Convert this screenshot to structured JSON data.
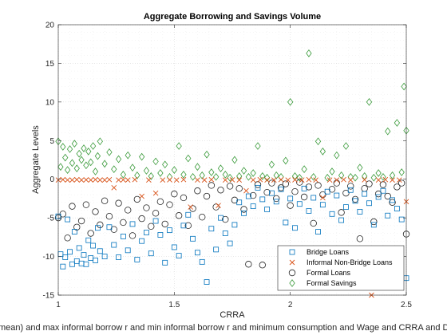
{
  "chart_data": {
    "type": "scatter",
    "title": "Aggregate Borrowing and Savings Volume",
    "xlabel": "CRRA",
    "ylabel": "Aggregate Levels",
    "caption": "mean) and max informal borrow r and min informal borrow r and minimum consumption and Wage and CRRA and D",
    "xlim": [
      1,
      2.5
    ],
    "ylim": [
      -15,
      20
    ],
    "xticks": [
      1,
      1.5,
      2,
      2.5
    ],
    "xtick_labels": [
      "1",
      "1.5",
      "2",
      "2.5"
    ],
    "yticks": [
      -15,
      -10,
      -5,
      0,
      5,
      10,
      15,
      20
    ],
    "ytick_labels": [
      "-15",
      "-10",
      "-5",
      "0",
      "5",
      "10",
      "15",
      "20"
    ],
    "grid": true,
    "grid_style": "dotted",
    "legend": {
      "placement": "bottom-right"
    },
    "series": [
      {
        "name": "Bridge Loans",
        "marker": "square",
        "color": "#0072BD",
        "points": [
          [
            1.0,
            -4.8
          ],
          [
            1.01,
            -9.7
          ],
          [
            1.02,
            -11.3
          ],
          [
            1.03,
            -10.1
          ],
          [
            1.04,
            -5.2
          ],
          [
            1.05,
            -9.4
          ],
          [
            1.06,
            -11.0
          ],
          [
            1.07,
            -6.8
          ],
          [
            1.08,
            -10.6
          ],
          [
            1.09,
            -8.9
          ],
          [
            1.1,
            -10.9
          ],
          [
            1.11,
            -9.8
          ],
          [
            1.12,
            -11.0
          ],
          [
            1.13,
            -7.9
          ],
          [
            1.14,
            -10.2
          ],
          [
            1.15,
            -8.6
          ],
          [
            1.16,
            -10.5
          ],
          [
            1.17,
            -6.3
          ],
          [
            1.18,
            -9.3
          ],
          [
            1.2,
            -10.0
          ],
          [
            1.22,
            -6.2
          ],
          [
            1.24,
            -8.5
          ],
          [
            1.26,
            -10.1
          ],
          [
            1.28,
            -7.4
          ],
          [
            1.3,
            -9.2
          ],
          [
            1.32,
            -5.8
          ],
          [
            1.34,
            -10.4
          ],
          [
            1.36,
            -8.0
          ],
          [
            1.38,
            -6.9
          ],
          [
            1.4,
            -9.6
          ],
          [
            1.42,
            -5.4
          ],
          [
            1.44,
            -7.2
          ],
          [
            1.46,
            -10.8
          ],
          [
            1.48,
            -6.6
          ],
          [
            1.5,
            -8.8
          ],
          [
            1.52,
            -9.9
          ],
          [
            1.54,
            -6.0
          ],
          [
            1.56,
            -4.6
          ],
          [
            1.58,
            -7.7
          ],
          [
            1.6,
            -9.5
          ],
          [
            1.62,
            -10.7
          ],
          [
            1.64,
            -13.3
          ],
          [
            1.66,
            -6.4
          ],
          [
            1.68,
            -9.1
          ],
          [
            1.7,
            -5.0
          ],
          [
            1.72,
            -7.0
          ],
          [
            1.74,
            -8.3
          ],
          [
            1.76,
            -5.9
          ],
          [
            1.78,
            -3.0
          ],
          [
            1.8,
            -4.4
          ],
          [
            1.82,
            -2.2
          ],
          [
            1.84,
            -3.5
          ],
          [
            1.86,
            -1.1
          ],
          [
            1.88,
            -2.6
          ],
          [
            1.9,
            -3.9
          ],
          [
            1.92,
            -1.8
          ],
          [
            1.94,
            -2.9
          ],
          [
            1.96,
            -1.3
          ],
          [
            1.98,
            -5.6
          ],
          [
            2.0,
            -2.5
          ],
          [
            2.02,
            -6.3
          ],
          [
            2.04,
            -3.2
          ],
          [
            2.06,
            -1.2
          ],
          [
            2.08,
            -4.1
          ],
          [
            2.1,
            -2.4
          ],
          [
            2.12,
            -6.8
          ],
          [
            2.14,
            -3.3
          ],
          [
            2.16,
            -1.6
          ],
          [
            2.18,
            -4.5
          ],
          [
            2.2,
            -2.1
          ],
          [
            2.22,
            -5.3
          ],
          [
            2.24,
            -3.6
          ],
          [
            2.26,
            -1.4
          ],
          [
            2.28,
            -2.8
          ],
          [
            2.3,
            -4.2
          ],
          [
            2.32,
            -1.9
          ],
          [
            2.34,
            -3.1
          ],
          [
            2.36,
            -5.9
          ],
          [
            2.38,
            -2.3
          ],
          [
            2.4,
            -1.5
          ],
          [
            2.42,
            -4.7
          ],
          [
            2.44,
            -2.7
          ],
          [
            2.46,
            -3.8
          ],
          [
            2.48,
            -5.2
          ],
          [
            2.5,
            -12.8
          ]
        ]
      },
      {
        "name": "Informal Non-Bridge Loans",
        "marker": "x",
        "color": "#D95319",
        "points": [
          [
            1.0,
            -0.1
          ],
          [
            1.02,
            -0.05
          ],
          [
            1.04,
            -0.1
          ],
          [
            1.06,
            -0.1
          ],
          [
            1.08,
            -0.05
          ],
          [
            1.1,
            -0.1
          ],
          [
            1.12,
            -0.08
          ],
          [
            1.14,
            -0.1
          ],
          [
            1.16,
            -0.05
          ],
          [
            1.18,
            -0.1
          ],
          [
            1.2,
            -0.1
          ],
          [
            1.22,
            -0.05
          ],
          [
            1.24,
            -1.1
          ],
          [
            1.26,
            -0.1
          ],
          [
            1.28,
            -0.08
          ],
          [
            1.3,
            -0.1
          ],
          [
            1.33,
            -0.05
          ],
          [
            1.36,
            -2.2
          ],
          [
            1.39,
            -0.1
          ],
          [
            1.42,
            -1.8
          ],
          [
            1.45,
            -0.1
          ],
          [
            1.48,
            -0.08
          ],
          [
            1.51,
            -0.1
          ],
          [
            1.54,
            -0.05
          ],
          [
            1.57,
            -3.6
          ],
          [
            1.6,
            -0.1
          ],
          [
            1.63,
            -0.1
          ],
          [
            1.66,
            -0.05
          ],
          [
            1.69,
            -3.4
          ],
          [
            1.72,
            -0.1
          ],
          [
            1.75,
            -0.08
          ],
          [
            1.78,
            -0.1
          ],
          [
            1.81,
            -1.5
          ],
          [
            1.84,
            -0.1
          ],
          [
            1.87,
            -0.05
          ],
          [
            1.9,
            -0.1
          ],
          [
            1.93,
            -0.1
          ],
          [
            1.96,
            -0.05
          ],
          [
            1.99,
            -0.1
          ],
          [
            2.02,
            -0.08
          ],
          [
            2.05,
            -0.1
          ],
          [
            2.08,
            -0.05
          ],
          [
            2.11,
            -0.1
          ],
          [
            2.14,
            -2.4
          ],
          [
            2.17,
            -0.1
          ],
          [
            2.2,
            -0.1
          ],
          [
            2.23,
            -0.05
          ],
          [
            2.26,
            -0.1
          ],
          [
            2.29,
            -13.3
          ],
          [
            2.32,
            -0.08
          ],
          [
            2.35,
            -15.0
          ],
          [
            2.38,
            -0.1
          ],
          [
            2.41,
            -0.05
          ],
          [
            2.44,
            -0.1
          ],
          [
            2.47,
            -0.1
          ],
          [
            2.5,
            -2.9
          ]
        ]
      },
      {
        "name": "Formal Loans",
        "marker": "circle",
        "color": "#262626",
        "points": [
          [
            1.0,
            -5.0
          ],
          [
            1.02,
            -4.5
          ],
          [
            1.04,
            -7.6
          ],
          [
            1.06,
            -3.5
          ],
          [
            1.08,
            -6.2
          ],
          [
            1.1,
            -5.4
          ],
          [
            1.12,
            -3.3
          ],
          [
            1.14,
            -7.0
          ],
          [
            1.16,
            -4.2
          ],
          [
            1.18,
            -5.9
          ],
          [
            1.2,
            -2.8
          ],
          [
            1.22,
            -4.8
          ],
          [
            1.24,
            -6.5
          ],
          [
            1.26,
            -3.1
          ],
          [
            1.28,
            -5.6
          ],
          [
            1.3,
            -4.0
          ],
          [
            1.32,
            -7.3
          ],
          [
            1.34,
            -2.6
          ],
          [
            1.36,
            -5.1
          ],
          [
            1.38,
            -3.7
          ],
          [
            1.4,
            -6.1
          ],
          [
            1.42,
            -4.4
          ],
          [
            1.44,
            -2.9
          ],
          [
            1.46,
            -5.8
          ],
          [
            1.48,
            -3.3
          ],
          [
            1.5,
            -1.9
          ],
          [
            1.52,
            -4.7
          ],
          [
            1.54,
            -2.4
          ],
          [
            1.56,
            -6.0
          ],
          [
            1.58,
            -3.8
          ],
          [
            1.6,
            -1.5
          ],
          [
            1.62,
            -4.9
          ],
          [
            1.64,
            -2.2
          ],
          [
            1.66,
            -0.8
          ],
          [
            1.68,
            -3.6
          ],
          [
            1.7,
            -1.4
          ],
          [
            1.72,
            -5.2
          ],
          [
            1.74,
            -0.9
          ],
          [
            1.76,
            -2.7
          ],
          [
            1.78,
            -1.2
          ],
          [
            1.8,
            -3.9
          ],
          [
            1.82,
            -11.0
          ],
          [
            1.84,
            -2.1
          ],
          [
            1.86,
            -0.7
          ],
          [
            1.88,
            -11.1
          ],
          [
            1.9,
            -1.7
          ],
          [
            1.92,
            -0.5
          ],
          [
            1.94,
            -2.5
          ],
          [
            1.96,
            -1.1
          ],
          [
            1.98,
            -0.6
          ],
          [
            2.0,
            -3.4
          ],
          [
            2.02,
            -1.6
          ],
          [
            2.04,
            -0.4
          ],
          [
            2.06,
            -2.3
          ],
          [
            2.08,
            -1.0
          ],
          [
            2.1,
            -5.7
          ],
          [
            2.12,
            -0.8
          ],
          [
            2.14,
            -2.0
          ],
          [
            2.16,
            -12.9
          ],
          [
            2.18,
            -1.3
          ],
          [
            2.2,
            -0.5
          ],
          [
            2.22,
            -4.3
          ],
          [
            2.24,
            -1.8
          ],
          [
            2.26,
            -0.9
          ],
          [
            2.28,
            -2.6
          ],
          [
            2.3,
            -7.7
          ],
          [
            2.32,
            -1.2
          ],
          [
            2.34,
            -0.6
          ],
          [
            2.36,
            -5.5
          ],
          [
            2.38,
            -1.9
          ],
          [
            2.4,
            -0.7
          ],
          [
            2.42,
            -2.2
          ],
          [
            2.44,
            -3.0
          ],
          [
            2.46,
            -1.0
          ],
          [
            2.48,
            -0.5
          ],
          [
            2.5,
            -7.1
          ]
        ]
      },
      {
        "name": "Formal Savings",
        "marker": "diamond",
        "color": "#3A9A3A",
        "points": [
          [
            1.0,
            4.9
          ],
          [
            1.01,
            1.6
          ],
          [
            1.02,
            4.2
          ],
          [
            1.03,
            2.8
          ],
          [
            1.04,
            1.2
          ],
          [
            1.05,
            3.9
          ],
          [
            1.06,
            2.1
          ],
          [
            1.07,
            4.6
          ],
          [
            1.08,
            1.4
          ],
          [
            1.09,
            3.3
          ],
          [
            1.1,
            2.5
          ],
          [
            1.11,
            4.0
          ],
          [
            1.12,
            1.8
          ],
          [
            1.13,
            3.6
          ],
          [
            1.14,
            2.2
          ],
          [
            1.15,
            4.3
          ],
          [
            1.16,
            1.0
          ],
          [
            1.17,
            3.0
          ],
          [
            1.18,
            4.9
          ],
          [
            1.2,
            2.0
          ],
          [
            1.22,
            3.5
          ],
          [
            1.24,
            1.3
          ],
          [
            1.26,
            2.6
          ],
          [
            1.28,
            0.6
          ],
          [
            1.3,
            3.1
          ],
          [
            1.32,
            1.5
          ],
          [
            1.34,
            0.5
          ],
          [
            1.36,
            2.9
          ],
          [
            1.38,
            1.1
          ],
          [
            1.4,
            0.4
          ],
          [
            1.42,
            2.3
          ],
          [
            1.44,
            0.8
          ],
          [
            1.46,
            1.9
          ],
          [
            1.48,
            0.3
          ],
          [
            1.5,
            1.2
          ],
          [
            1.52,
            4.3
          ],
          [
            1.54,
            0.6
          ],
          [
            1.56,
            2.7
          ],
          [
            1.58,
            0.3
          ],
          [
            1.6,
            1.6
          ],
          [
            1.62,
            0.5
          ],
          [
            1.64,
            3.2
          ],
          [
            1.66,
            0.9
          ],
          [
            1.68,
            0.3
          ],
          [
            1.7,
            1.4
          ],
          [
            1.72,
            0.6
          ],
          [
            1.74,
            0.2
          ],
          [
            1.76,
            2.5
          ],
          [
            1.78,
            0.4
          ],
          [
            1.8,
            1.1
          ],
          [
            1.82,
            0.3
          ],
          [
            1.84,
            0.8
          ],
          [
            1.86,
            4.3
          ],
          [
            1.88,
            0.4
          ],
          [
            1.9,
            0.2
          ],
          [
            1.92,
            1.9
          ],
          [
            1.94,
            0.5
          ],
          [
            1.96,
            0.3
          ],
          [
            1.98,
            2.4
          ],
          [
            2.0,
            10.0
          ],
          [
            2.02,
            0.4
          ],
          [
            2.04,
            0.2
          ],
          [
            2.06,
            1.3
          ],
          [
            2.08,
            16.3
          ],
          [
            2.1,
            0.3
          ],
          [
            2.12,
            4.9
          ],
          [
            2.14,
            3.6
          ],
          [
            2.16,
            0.2
          ],
          [
            2.18,
            1.0
          ],
          [
            2.2,
            3.1
          ],
          [
            2.22,
            0.5
          ],
          [
            2.24,
            4.3
          ],
          [
            2.26,
            0.3
          ],
          [
            2.28,
            0.2
          ],
          [
            2.3,
            1.5
          ],
          [
            2.32,
            0.4
          ],
          [
            2.34,
            10.0
          ],
          [
            2.36,
            0.2
          ],
          [
            2.38,
            0.8
          ],
          [
            2.4,
            0.3
          ],
          [
            2.42,
            6.2
          ],
          [
            2.44,
            0.5
          ],
          [
            2.46,
            7.3
          ],
          [
            2.48,
            0.9
          ],
          [
            2.49,
            12.0
          ],
          [
            2.5,
            6.3
          ]
        ]
      }
    ]
  }
}
